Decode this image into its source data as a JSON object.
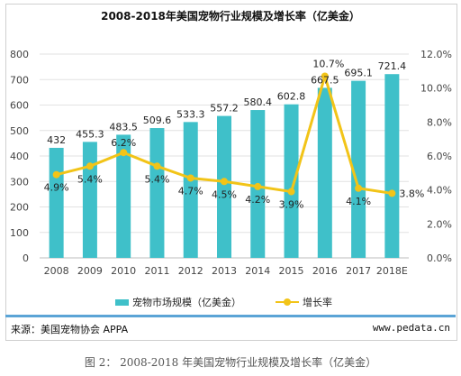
{
  "title": "2008-2018年美国宠物行业规模及增长率（亿美金）",
  "chart_data": {
    "type": "bar",
    "categories": [
      "2008",
      "2009",
      "2010",
      "2011",
      "2012",
      "2013",
      "2014",
      "2015",
      "2016",
      "2017",
      "2018E"
    ],
    "series": [
      {
        "name": "宠物市场规模（亿美金）",
        "type": "bar",
        "axis": "left",
        "values": [
          432,
          455.3,
          483.5,
          509.6,
          533.3,
          557.2,
          580.4,
          602.8,
          667.5,
          695.1,
          721.4
        ],
        "labels": [
          "432",
          "455.3",
          "483.5",
          "509.6",
          "533.3",
          "557.2",
          "580.4",
          "602.8",
          "667.5",
          "695.1",
          "721.4"
        ],
        "color": "#3fc0c9"
      },
      {
        "name": "增长率",
        "type": "line",
        "axis": "right",
        "values": [
          4.9,
          5.4,
          6.2,
          5.4,
          4.7,
          4.5,
          4.2,
          3.9,
          10.7,
          4.1,
          3.8
        ],
        "labels": [
          "4.9%",
          "5.4%",
          "6.2%",
          "5.4%",
          "4.7%",
          "4.5%",
          "4.2%",
          "3.9%",
          "10.7%",
          "4.1%",
          "3.8%"
        ],
        "color": "#f2c418"
      }
    ],
    "y_left": {
      "min": 0,
      "max": 800,
      "ticks": [
        "0",
        "100",
        "200",
        "300",
        "400",
        "500",
        "600",
        "700",
        "800"
      ]
    },
    "y_right": {
      "min": 0,
      "max": 12,
      "ticks": [
        "0.0%",
        "2.0%",
        "4.0%",
        "6.0%",
        "8.0%",
        "10.0%",
        "12.0%"
      ]
    },
    "grid": true,
    "legend_position": "bottom"
  },
  "legend": {
    "bar_label": "宠物市场规模（亿美金）",
    "line_label": "增长率"
  },
  "source": "来源：美国宠物协会 APPA",
  "site": "www.pedata.cn",
  "caption": "图 2：  2008-2018 年美国宠物行业规模及增长率（亿美金）"
}
